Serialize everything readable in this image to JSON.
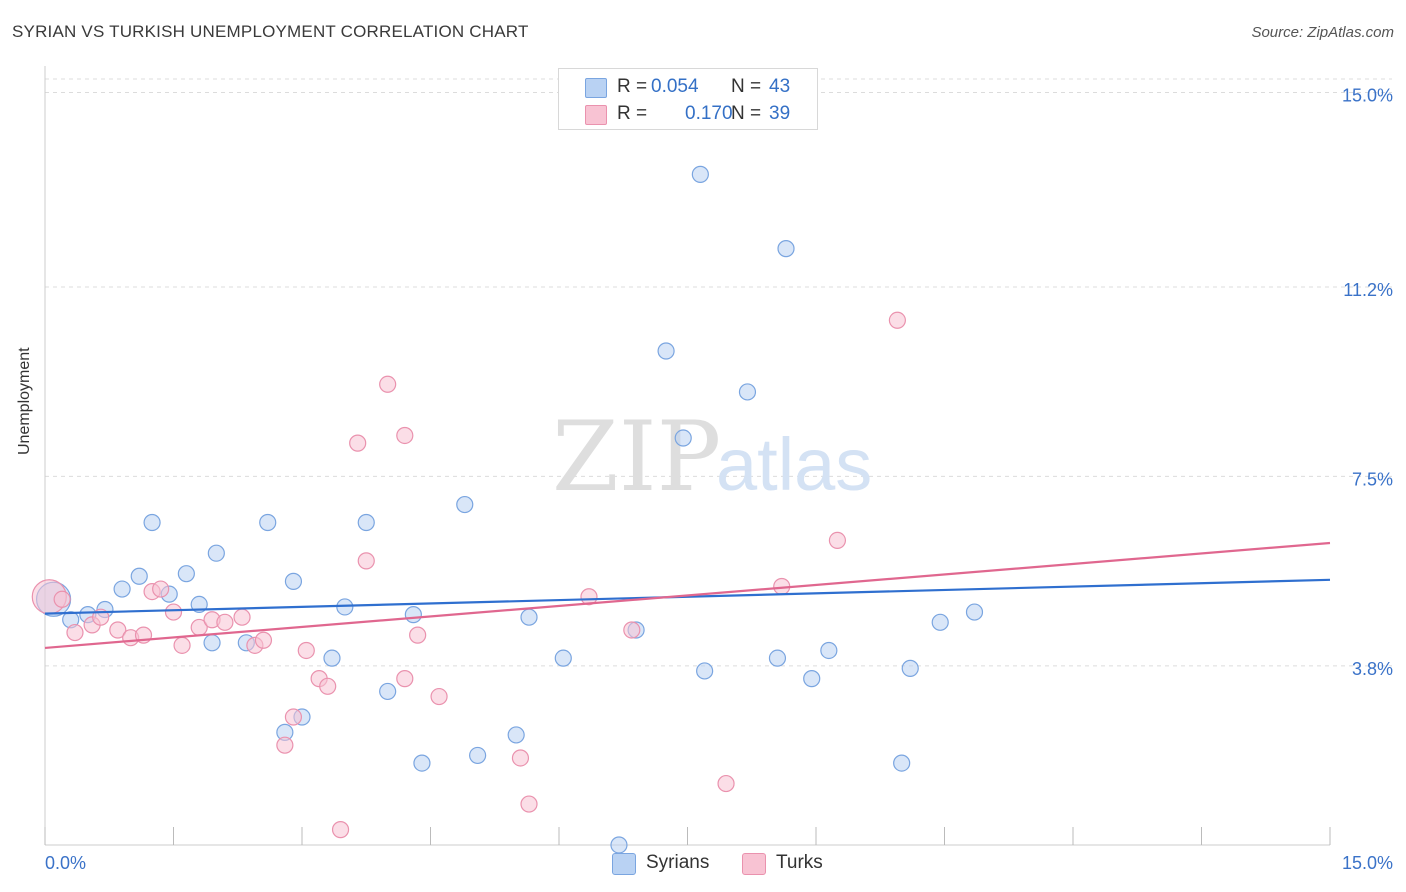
{
  "title": "SYRIAN VS TURKISH UNEMPLOYMENT CORRELATION CHART",
  "source": "Source: ZipAtlas.com",
  "watermark": {
    "zip": "ZIP",
    "atlas": "atlas"
  },
  "legend": {
    "rows": [
      {
        "r_label": "R =",
        "r_value": "0.054",
        "n_label": "N =",
        "n_value": "43"
      },
      {
        "r_label": "R =",
        "r_value": "0.170",
        "n_label": "N =",
        "n_value": "39"
      }
    ]
  },
  "bottom_legend": [
    "Syrians",
    "Turks"
  ],
  "colors": {
    "syrians_fill": "#b9d2f3",
    "syrians_stroke": "#7aa5e0",
    "syrians_line": "#2f6fcf",
    "turks_fill": "#f8c3d3",
    "turks_stroke": "#ea92ae",
    "turks_line": "#e0678f",
    "tick_label": "#3a72c8",
    "grid": "#dcdcdc"
  },
  "chart_data": {
    "type": "scatter",
    "title": "SYRIAN VS TURKISH UNEMPLOYMENT CORRELATION CHART",
    "xlabel": "",
    "ylabel": "Unemployment",
    "xlim": [
      0,
      15
    ],
    "ylim": [
      0.3,
      15.4
    ],
    "x_tick_labels": [
      "0.0%",
      "15.0%"
    ],
    "y_ticks": [
      3.8,
      7.5,
      11.2,
      15.0
    ],
    "y_tick_labels": [
      "3.8%",
      "7.5%",
      "11.2%",
      "15.0%"
    ],
    "grid": "horizontal dashed",
    "series": [
      {
        "name": "Syrians",
        "r": 0.054,
        "n": 43,
        "trend": {
          "x": [
            0,
            15
          ],
          "y": [
            4.82,
            5.48
          ]
        },
        "points": [
          {
            "x": 0.1,
            "y": 5.1,
            "large": true
          },
          {
            "x": 0.3,
            "y": 4.7
          },
          {
            "x": 0.5,
            "y": 4.8
          },
          {
            "x": 0.7,
            "y": 4.9
          },
          {
            "x": 0.9,
            "y": 5.3
          },
          {
            "x": 1.1,
            "y": 5.55
          },
          {
            "x": 1.25,
            "y": 6.6
          },
          {
            "x": 1.45,
            "y": 5.2
          },
          {
            "x": 1.65,
            "y": 5.6
          },
          {
            "x": 1.8,
            "y": 5.0
          },
          {
            "x": 1.95,
            "y": 4.25
          },
          {
            "x": 2.0,
            "y": 6.0
          },
          {
            "x": 2.35,
            "y": 4.25
          },
          {
            "x": 2.6,
            "y": 6.6
          },
          {
            "x": 2.8,
            "y": 2.5
          },
          {
            "x": 2.9,
            "y": 5.45
          },
          {
            "x": 3.0,
            "y": 2.8
          },
          {
            "x": 3.35,
            "y": 3.95
          },
          {
            "x": 3.5,
            "y": 4.95
          },
          {
            "x": 3.75,
            "y": 6.6
          },
          {
            "x": 4.0,
            "y": 3.3
          },
          {
            "x": 4.3,
            "y": 4.8
          },
          {
            "x": 4.4,
            "y": 1.9
          },
          {
            "x": 4.9,
            "y": 6.95
          },
          {
            "x": 5.05,
            "y": 2.05
          },
          {
            "x": 5.5,
            "y": 2.45
          },
          {
            "x": 5.65,
            "y": 4.75
          },
          {
            "x": 6.05,
            "y": 3.95
          },
          {
            "x": 6.7,
            "y": 0.3
          },
          {
            "x": 6.9,
            "y": 4.5
          },
          {
            "x": 7.25,
            "y": 9.95
          },
          {
            "x": 7.45,
            "y": 8.25
          },
          {
            "x": 7.65,
            "y": 13.4
          },
          {
            "x": 7.7,
            "y": 3.7
          },
          {
            "x": 8.2,
            "y": 9.15
          },
          {
            "x": 8.55,
            "y": 3.95
          },
          {
            "x": 8.65,
            "y": 11.95
          },
          {
            "x": 8.95,
            "y": 3.55
          },
          {
            "x": 9.15,
            "y": 4.1
          },
          {
            "x": 10.0,
            "y": 1.9
          },
          {
            "x": 10.1,
            "y": 3.75
          },
          {
            "x": 10.45,
            "y": 4.65
          },
          {
            "x": 10.85,
            "y": 4.85
          }
        ]
      },
      {
        "name": "Turks",
        "r": 0.17,
        "n": 39,
        "trend": {
          "x": [
            0,
            15
          ],
          "y": [
            4.15,
            6.2
          ]
        },
        "points": [
          {
            "x": 0.05,
            "y": 5.15,
            "large": true
          },
          {
            "x": 0.2,
            "y": 5.1
          },
          {
            "x": 0.35,
            "y": 4.45
          },
          {
            "x": 0.55,
            "y": 4.6
          },
          {
            "x": 0.65,
            "y": 4.75
          },
          {
            "x": 0.85,
            "y": 4.5
          },
          {
            "x": 1.0,
            "y": 4.35
          },
          {
            "x": 1.15,
            "y": 4.4
          },
          {
            "x": 1.25,
            "y": 5.25
          },
          {
            "x": 1.35,
            "y": 5.3
          },
          {
            "x": 1.5,
            "y": 4.85
          },
          {
            "x": 1.6,
            "y": 4.2
          },
          {
            "x": 1.8,
            "y": 4.55
          },
          {
            "x": 1.95,
            "y": 4.7
          },
          {
            "x": 2.1,
            "y": 4.65
          },
          {
            "x": 2.3,
            "y": 4.75
          },
          {
            "x": 2.45,
            "y": 4.2
          },
          {
            "x": 2.55,
            "y": 4.3
          },
          {
            "x": 2.8,
            "y": 2.25
          },
          {
            "x": 2.9,
            "y": 2.8
          },
          {
            "x": 3.05,
            "y": 4.1
          },
          {
            "x": 3.2,
            "y": 3.55
          },
          {
            "x": 3.3,
            "y": 3.4
          },
          {
            "x": 3.45,
            "y": 0.6
          },
          {
            "x": 3.65,
            "y": 8.15
          },
          {
            "x": 3.75,
            "y": 5.85
          },
          {
            "x": 4.0,
            "y": 9.3
          },
          {
            "x": 4.2,
            "y": 8.3
          },
          {
            "x": 4.2,
            "y": 3.55
          },
          {
            "x": 4.35,
            "y": 4.4
          },
          {
            "x": 4.6,
            "y": 3.2
          },
          {
            "x": 5.55,
            "y": 2.0
          },
          {
            "x": 5.65,
            "y": 1.1
          },
          {
            "x": 6.35,
            "y": 5.15
          },
          {
            "x": 6.85,
            "y": 4.5
          },
          {
            "x": 7.95,
            "y": 1.5
          },
          {
            "x": 8.6,
            "y": 5.35
          },
          {
            "x": 9.25,
            "y": 6.25
          },
          {
            "x": 9.95,
            "y": 10.55
          }
        ]
      }
    ]
  }
}
